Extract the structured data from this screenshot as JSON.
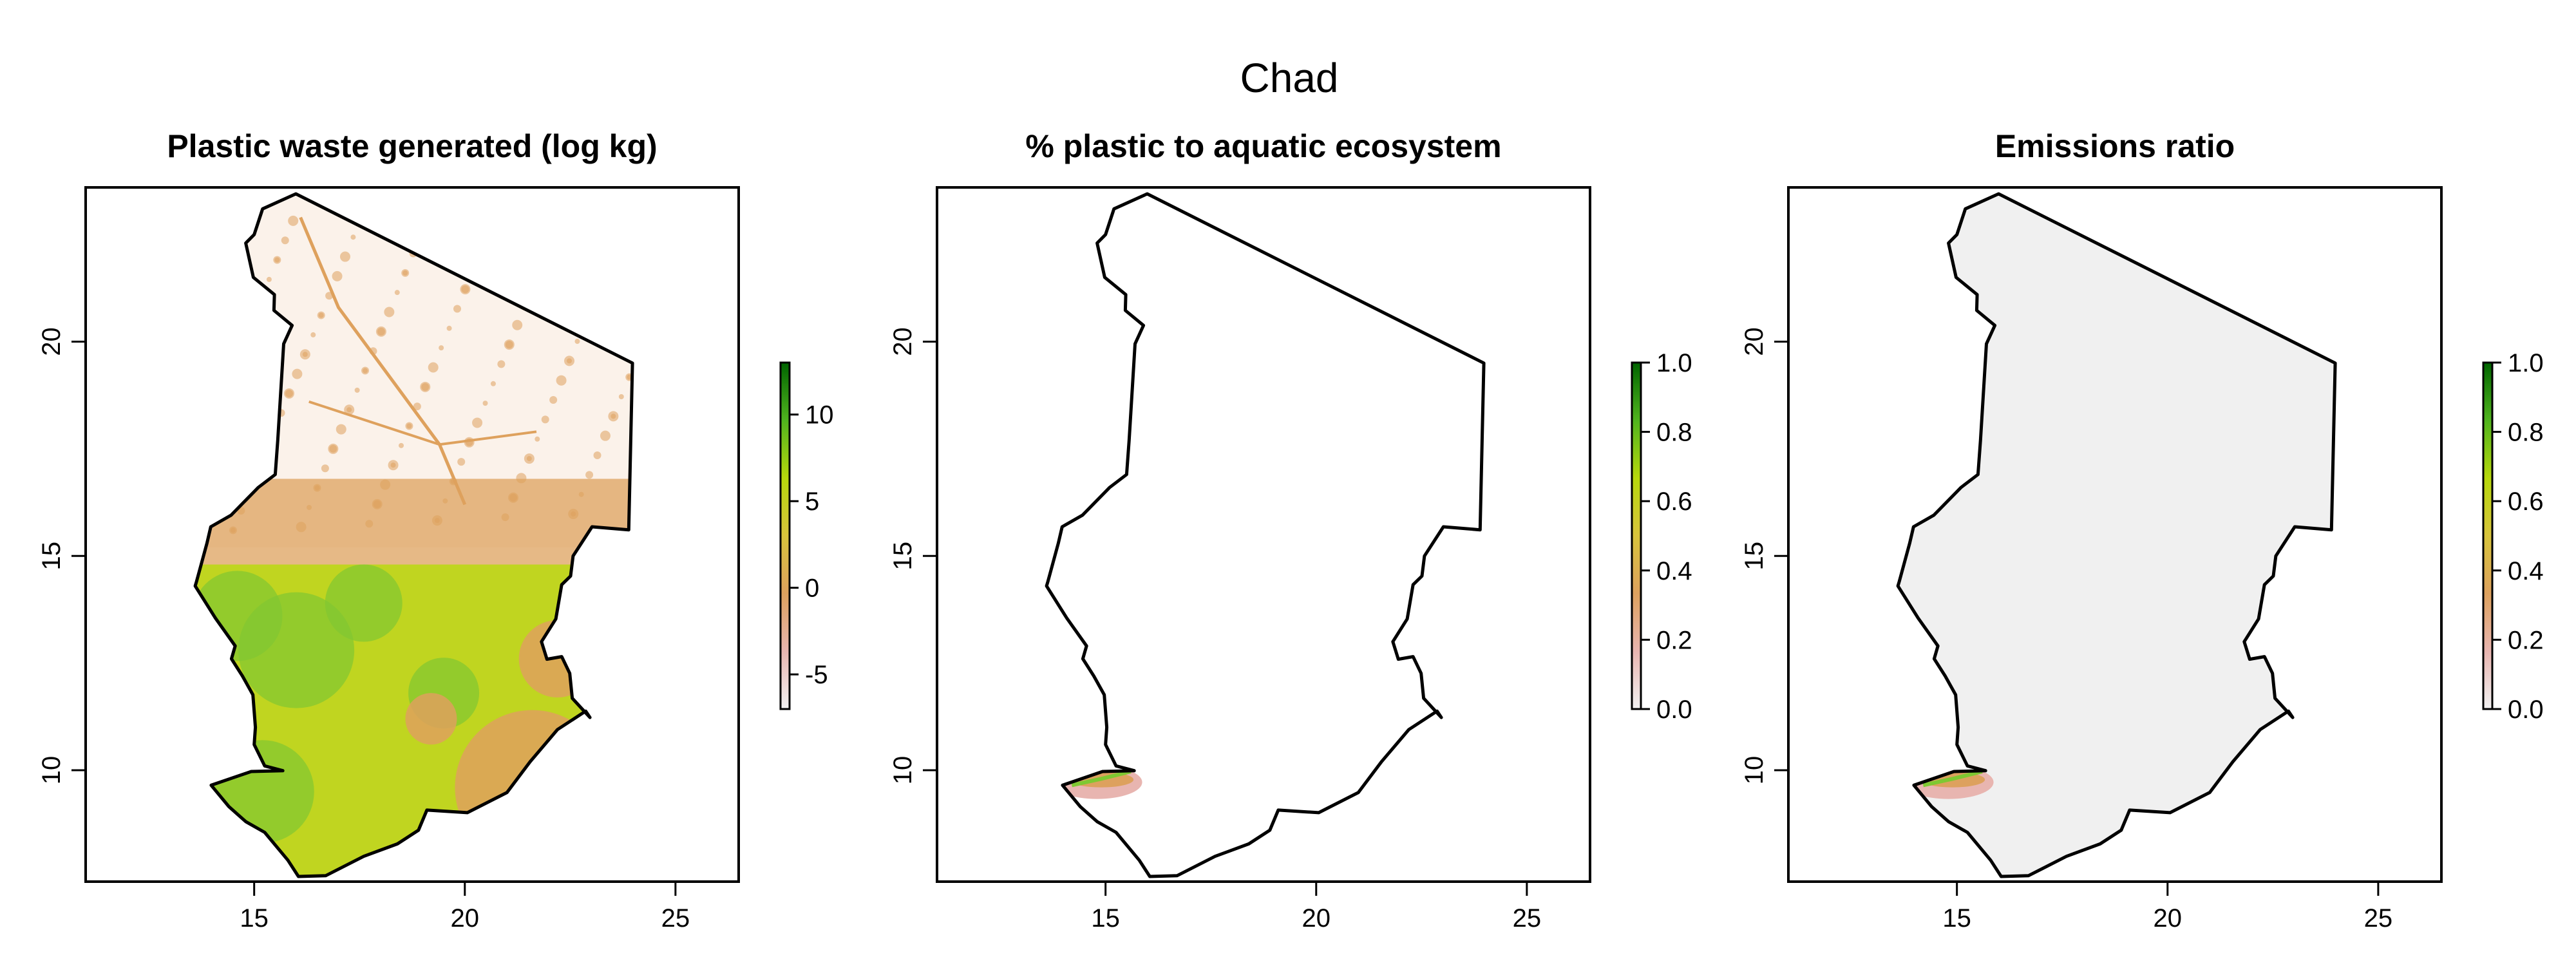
{
  "title": "Chad",
  "panels": [
    {
      "title": "Plastic waste generated (log kg)",
      "fill_mode": "waste",
      "legend_ticks": [
        "10",
        "5",
        "0",
        "-5"
      ],
      "legend_range": [
        -7,
        13
      ]
    },
    {
      "title": "% plastic to aquatic ecosystem",
      "fill_mode": "aquatic",
      "legend_ticks": [
        "1.0",
        "0.8",
        "0.6",
        "0.4",
        "0.2",
        "0.0"
      ],
      "legend_range": [
        0,
        1
      ]
    },
    {
      "title": "Emissions ratio",
      "fill_mode": "emissions",
      "legend_ticks": [
        "1.0",
        "0.8",
        "0.6",
        "0.4",
        "0.2",
        "0.0"
      ],
      "legend_range": [
        0,
        1
      ]
    }
  ],
  "axes": {
    "x_range": [
      11,
      26.5
    ],
    "y_range": [
      7.4,
      23.6
    ],
    "x_ticks": [
      "15",
      "20",
      "25"
    ],
    "y_ticks": [
      "10",
      "15",
      "20"
    ]
  },
  "colors": {
    "ramp": [
      "#f2f2f2",
      "#e8b5b0",
      "#dda15e",
      "#d8c43c",
      "#b7d80c",
      "#50b41e",
      "#006400"
    ],
    "waste_south": "#c0d520",
    "waste_green": "#80c632",
    "waste_orange": "#dea15d",
    "emissions_grey": "#f0f0f0"
  },
  "chad_border_lonlat": [
    [
      15.99,
      23.45
    ],
    [
      15.2,
      23.1
    ],
    [
      15.0,
      22.5
    ],
    [
      14.8,
      22.3
    ],
    [
      14.98,
      21.5
    ],
    [
      15.48,
      21.1
    ],
    [
      15.47,
      20.73
    ],
    [
      15.9,
      20.38
    ],
    [
      15.7,
      19.95
    ],
    [
      15.56,
      17.7
    ],
    [
      15.5,
      16.9
    ],
    [
      15.1,
      16.6
    ],
    [
      14.45,
      15.95
    ],
    [
      13.97,
      15.68
    ],
    [
      13.88,
      15.3
    ],
    [
      13.63,
      14.4
    ],
    [
      13.6,
      14.3
    ],
    [
      14.08,
      13.55
    ],
    [
      14.55,
      12.9
    ],
    [
      14.46,
      12.6
    ],
    [
      14.72,
      12.2
    ],
    [
      14.97,
      11.76
    ],
    [
      15.03,
      11.0
    ],
    [
      15.0,
      10.6
    ],
    [
      15.25,
      10.1
    ],
    [
      15.68,
      9.99
    ],
    [
      14.93,
      9.97
    ],
    [
      13.98,
      9.65
    ],
    [
      14.4,
      9.15
    ],
    [
      14.8,
      8.8
    ],
    [
      15.25,
      8.55
    ],
    [
      15.8,
      7.9
    ],
    [
      16.05,
      7.52
    ],
    [
      16.7,
      7.54
    ],
    [
      17.6,
      7.99
    ],
    [
      18.4,
      8.28
    ],
    [
      18.9,
      8.6
    ],
    [
      19.1,
      9.07
    ],
    [
      20.06,
      9.01
    ],
    [
      21.0,
      9.48
    ],
    [
      21.55,
      10.2
    ],
    [
      22.2,
      10.95
    ],
    [
      22.87,
      11.38
    ],
    [
      22.97,
      11.23
    ],
    [
      22.55,
      11.68
    ],
    [
      22.49,
      12.26
    ],
    [
      22.3,
      12.65
    ],
    [
      21.95,
      12.59
    ],
    [
      21.82,
      13.0
    ],
    [
      22.16,
      13.53
    ],
    [
      22.3,
      14.33
    ],
    [
      22.51,
      14.53
    ],
    [
      22.57,
      15.0
    ],
    [
      23.02,
      15.68
    ],
    [
      23.89,
      15.61
    ],
    [
      23.98,
      19.5
    ],
    [
      15.99,
      23.45
    ]
  ]
}
